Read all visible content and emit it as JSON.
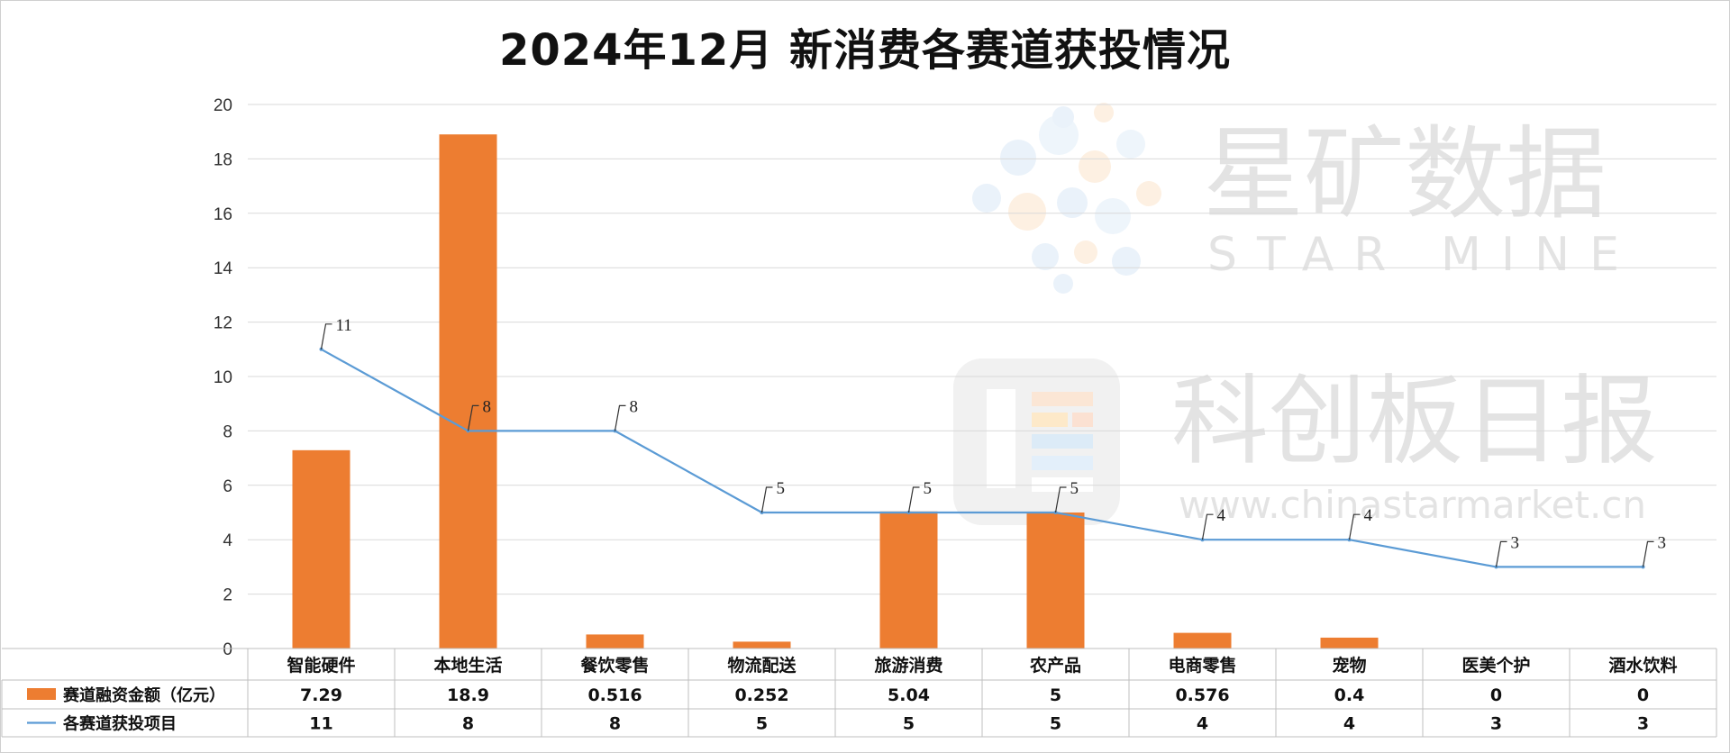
{
  "title": "2024年12月 新消费各赛道获投情况",
  "watermark": {
    "brand_cn": "星矿数据",
    "brand_en": "STAR MINE",
    "publisher_cn": "科创板日报",
    "site": "www.chinastarmarket.cn"
  },
  "colors": {
    "bar": "#ED7D31",
    "line": "#5B9BD5",
    "grid": "#d9d9d9"
  },
  "chart_data": {
    "type": "bar",
    "categories": [
      "智能硬件",
      "本地生活",
      "餐饮零售",
      "物流配送",
      "旅游消费",
      "农产品",
      "电商零售",
      "宠物",
      "医美个护",
      "酒水饮料"
    ],
    "series": [
      {
        "name": "赛道融资金额（亿元）",
        "type": "bar",
        "values": [
          7.29,
          18.9,
          0.516,
          0.252,
          5.04,
          5,
          0.576,
          0.4,
          0,
          0
        ],
        "display": [
          "7.29",
          "18.9",
          "0.516",
          "0.252",
          "5.04",
          "5",
          "0.576",
          "0.4",
          "0",
          "0"
        ]
      },
      {
        "name": "各赛道获投项目",
        "type": "line",
        "values": [
          11,
          8,
          8,
          5,
          5,
          5,
          4,
          4,
          3,
          3
        ],
        "display": [
          "11",
          "8",
          "8",
          "5",
          "5",
          "5",
          "4",
          "4",
          "3",
          "3"
        ]
      }
    ],
    "yticks": [
      "0",
      "2",
      "4",
      "6",
      "8",
      "10",
      "12",
      "14",
      "16",
      "18",
      "20"
    ],
    "ylim": [
      0,
      20
    ],
    "grid": true,
    "legend": "data-table"
  }
}
